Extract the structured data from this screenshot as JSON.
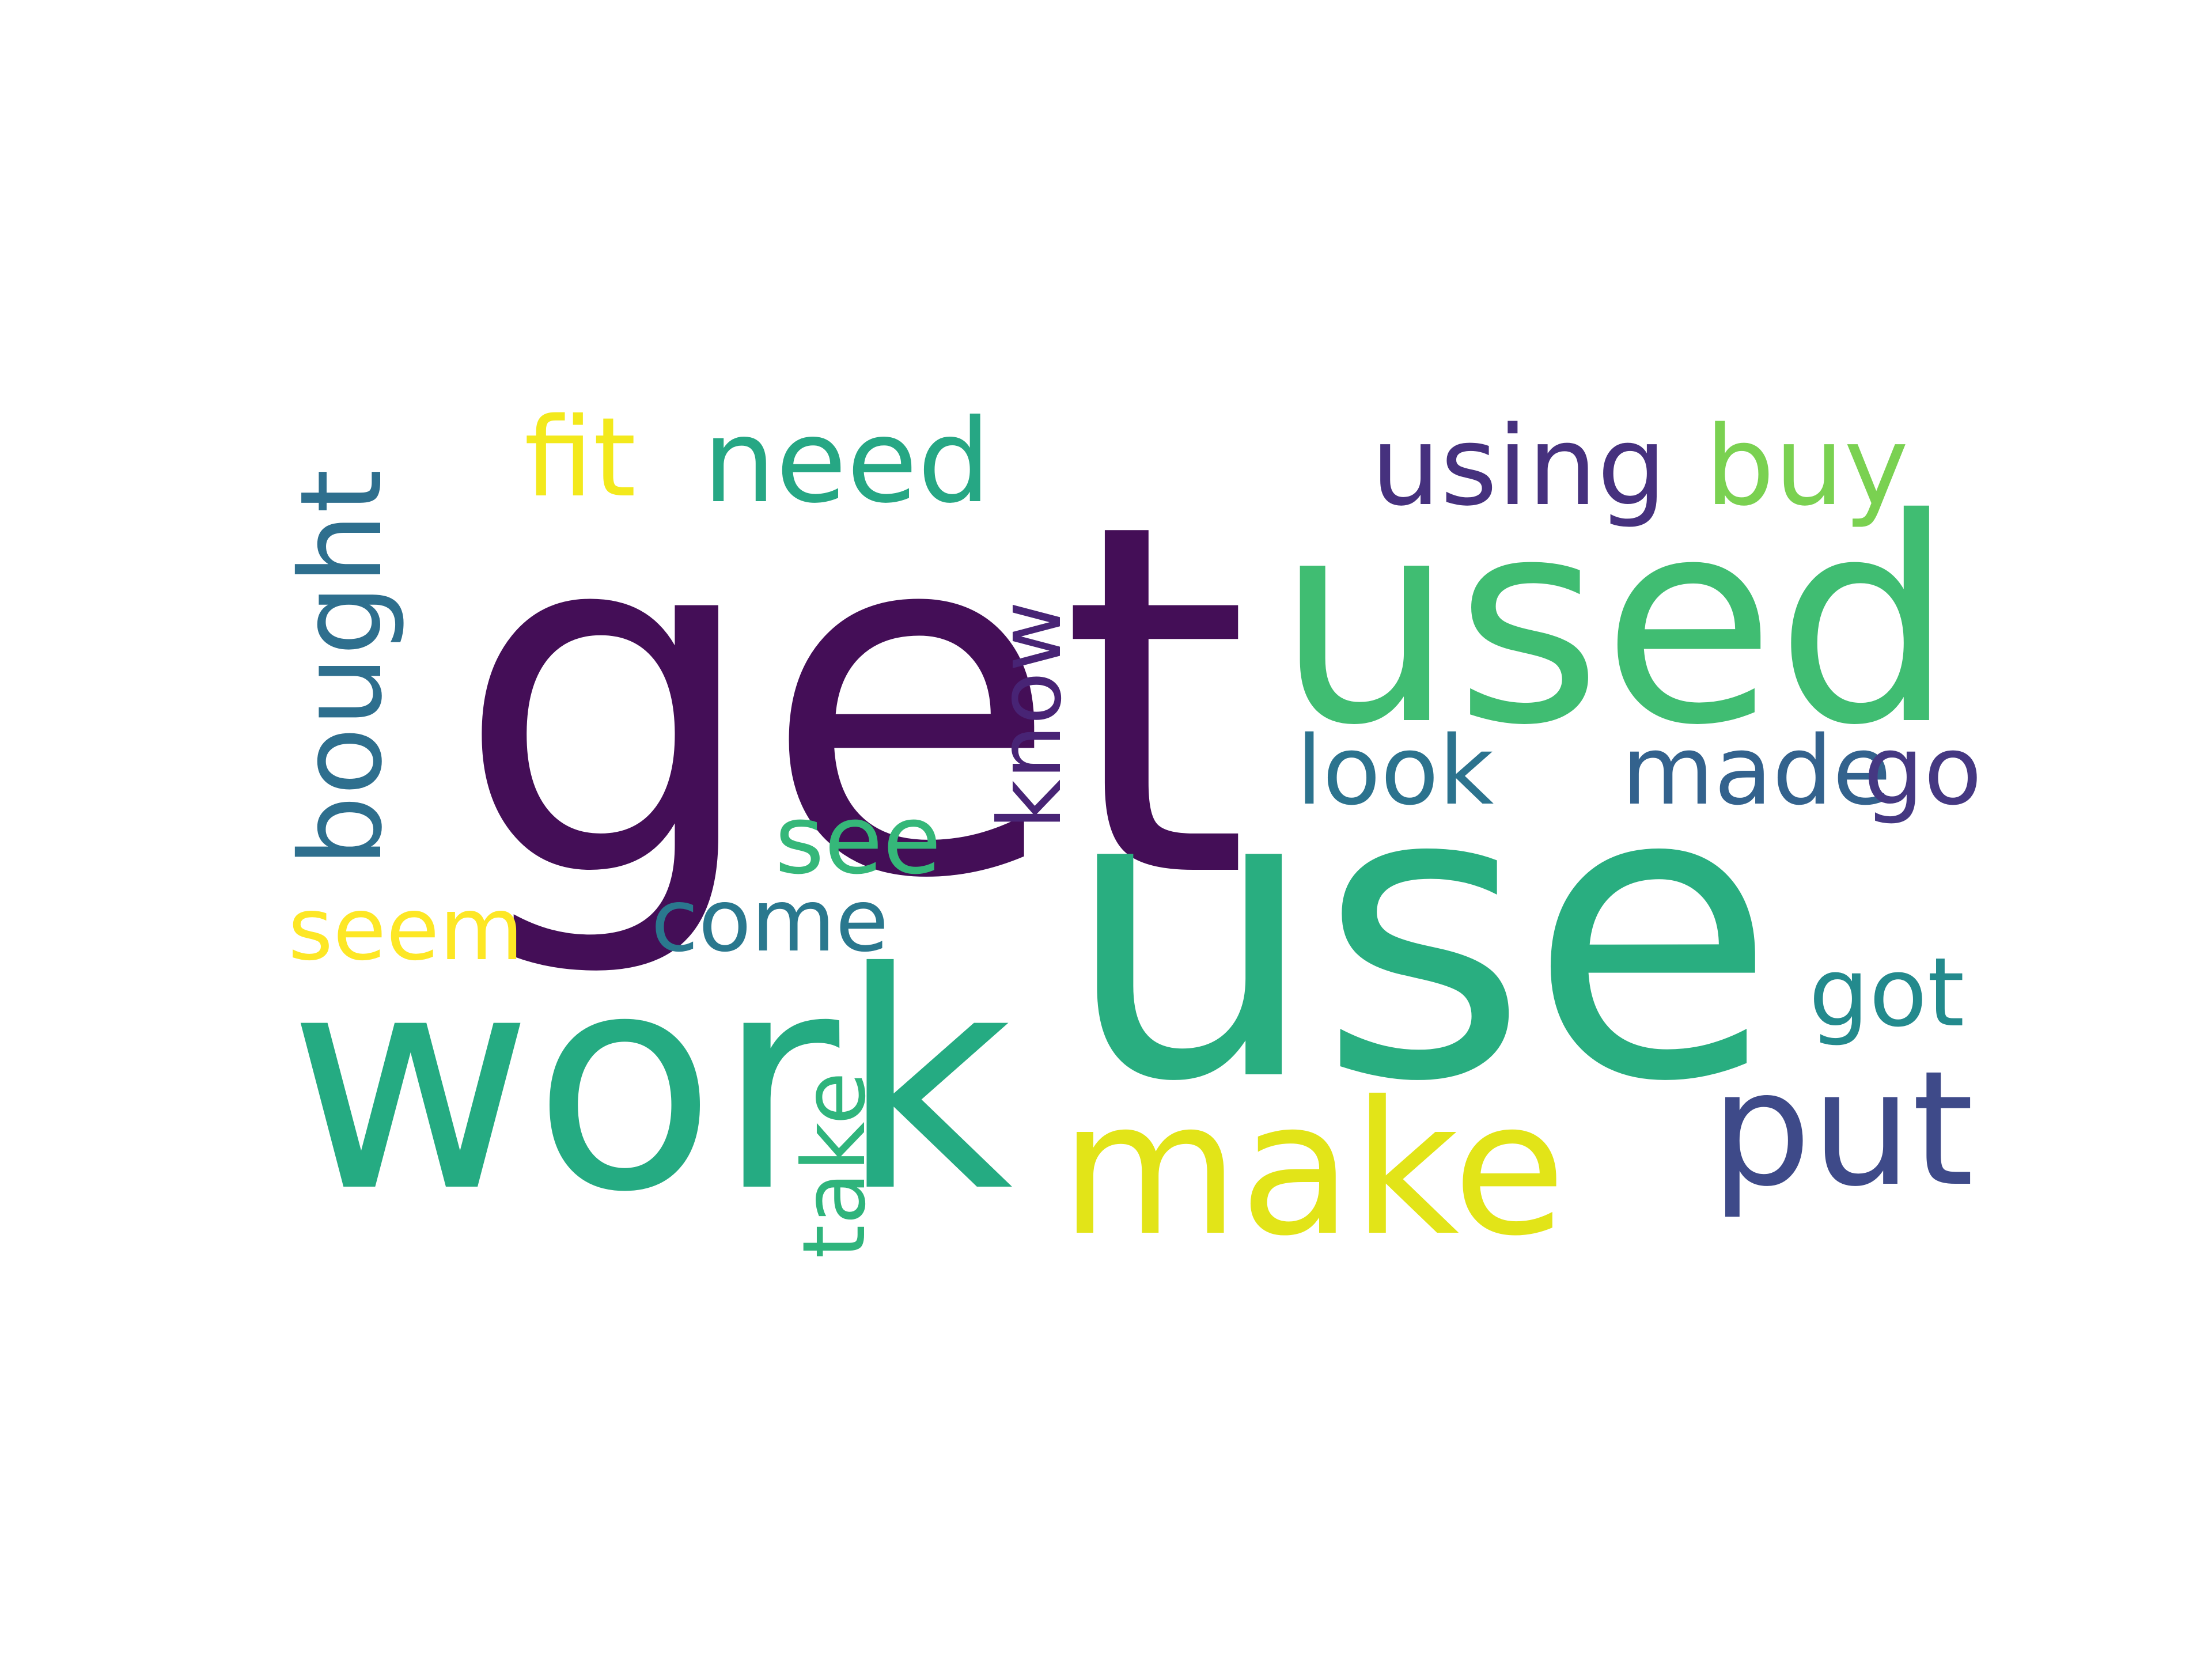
{
  "background_color": "#ffffff",
  "words": [
    {
      "text": "get",
      "color": "#440e57",
      "rotated": false
    },
    {
      "text": "use",
      "color": "#29ae80",
      "rotated": false
    },
    {
      "text": "work",
      "color": "#25ab82",
      "rotated": false
    },
    {
      "text": "used",
      "color": "#40bd72",
      "rotated": false
    },
    {
      "text": "make",
      "color": "#e2e418",
      "rotated": false
    },
    {
      "text": "put",
      "color": "#3e4a89",
      "rotated": false
    },
    {
      "text": "need",
      "color": "#26a784",
      "rotated": false
    },
    {
      "text": "using",
      "color": "#46317e",
      "rotated": false
    },
    {
      "text": "buy",
      "color": "#7ad151",
      "rotated": false
    },
    {
      "text": "fit",
      "color": "#f3e91c",
      "rotated": false
    },
    {
      "text": "bought",
      "color": "#2e6f8e",
      "rotated": true
    },
    {
      "text": "know",
      "color": "#482475",
      "rotated": true
    },
    {
      "text": "look",
      "color": "#2c738e",
      "rotated": false
    },
    {
      "text": "made",
      "color": "#33628d",
      "rotated": false
    },
    {
      "text": "go",
      "color": "#453882",
      "rotated": false
    },
    {
      "text": "see",
      "color": "#35b779",
      "rotated": false
    },
    {
      "text": "seem",
      "color": "#fde725",
      "rotated": false
    },
    {
      "text": "come",
      "color": "#2a788e",
      "rotated": false
    },
    {
      "text": "got",
      "color": "#238a8d",
      "rotated": false
    },
    {
      "text": "take",
      "color": "#2fb47c",
      "rotated": true
    }
  ]
}
